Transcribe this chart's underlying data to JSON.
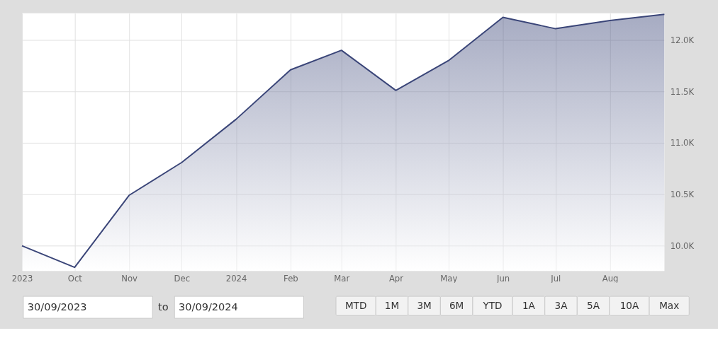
{
  "chart_data": {
    "type": "area",
    "x": [
      "2023-09-01",
      "2023-10-01",
      "2023-11-01",
      "2023-12-01",
      "2024-01-01",
      "2024-02-01",
      "2024-03-01",
      "2024-04-01",
      "2024-05-01",
      "2024-06-01",
      "2024-07-01",
      "2024-08-01",
      "2024-09-01"
    ],
    "series": [
      {
        "color": "#3a4578",
        "values": [
          10000,
          9790,
          10490,
          10810,
          11230,
          11710,
          11900,
          11510,
          11800,
          12220,
          12110,
          12190,
          12250
        ]
      }
    ],
    "xlim": [
      "2023-09-01",
      "2024-09-01"
    ],
    "xticks": [
      {
        "value": "2023-09-01",
        "label": "2023"
      },
      {
        "value": "2023-10-01",
        "label": "Oct"
      },
      {
        "value": "2023-11-01",
        "label": "Nov"
      },
      {
        "value": "2023-12-01",
        "label": "Dec"
      },
      {
        "value": "2024-01-01",
        "label": "2024"
      },
      {
        "value": "2024-02-01",
        "label": "Feb"
      },
      {
        "value": "2024-03-01",
        "label": "Mar"
      },
      {
        "value": "2024-04-01",
        "label": "Apr"
      },
      {
        "value": "2024-05-01",
        "label": "May"
      },
      {
        "value": "2024-06-01",
        "label": "Jun"
      },
      {
        "value": "2024-07-01",
        "label": "Jul"
      },
      {
        "value": "2024-08-01",
        "label": "Aug"
      }
    ],
    "ylim": [
      9755,
      12260
    ],
    "yticks": [
      {
        "value": 10000,
        "label": "10.0K"
      },
      {
        "value": 10500,
        "label": "10.5K"
      },
      {
        "value": 11000,
        "label": "11.0K"
      },
      {
        "value": 11500,
        "label": "11.5K"
      },
      {
        "value": 12000,
        "label": "12.0K"
      }
    ],
    "grid": true,
    "annotations": [
      "30/09/2023",
      "to",
      "30/09/2024",
      "MTD",
      "1M",
      "3M",
      "6M",
      "YTD",
      "1A",
      "3A",
      "5A",
      "10A",
      "Max"
    ]
  }
}
